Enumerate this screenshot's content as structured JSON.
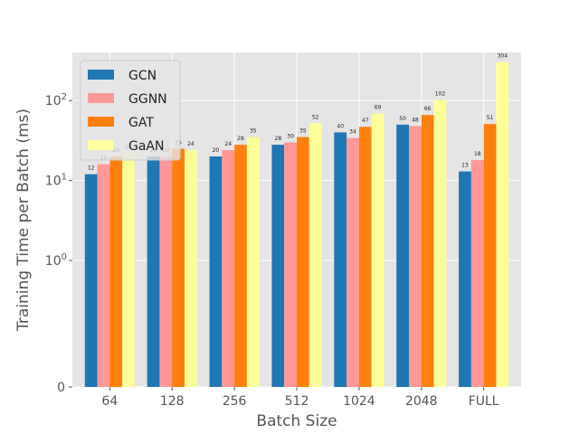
{
  "chart_data": {
    "type": "bar",
    "title": "",
    "xlabel": "Batch Size",
    "ylabel": "Training Time per Batch (ms)",
    "yscale": "symlog",
    "ylim": [
      0,
      400
    ],
    "yticks": [
      {
        "value": 0,
        "label": "0"
      },
      {
        "value": 1,
        "label": "10",
        "exp": "0"
      },
      {
        "value": 10,
        "label": "10",
        "exp": "1"
      },
      {
        "value": 100,
        "label": "10",
        "exp": "2"
      }
    ],
    "grid": true,
    "legend_position": "top-left",
    "categories": [
      "64",
      "128",
      "256",
      "512",
      "1024",
      "2048",
      "FULL"
    ],
    "series": [
      {
        "name": "GCN",
        "color": "#1f77b4",
        "values": [
          12,
          20,
          20,
          28,
          40,
          50,
          13
        ],
        "labels": [
          "12",
          "20",
          "20",
          "28",
          "40",
          "50",
          "13"
        ]
      },
      {
        "name": "GGNN",
        "color": "#ff9896",
        "values": [
          16,
          20,
          24,
          30,
          34,
          48,
          18
        ],
        "labels": [
          "16",
          "20",
          "24",
          "30",
          "34",
          "48",
          "18"
        ]
      },
      {
        "name": "GAT",
        "color": "#ff7f0e",
        "values": [
          20,
          25,
          28,
          35,
          47,
          66,
          51
        ],
        "labels": [
          "20",
          "25",
          "28",
          "35",
          "47",
          "66",
          "51"
        ]
      },
      {
        "name": "GaAN",
        "color": "#ffff99",
        "values": [
          22,
          24,
          35,
          52,
          69,
          102,
          304
        ],
        "labels": [
          "22",
          "24",
          "35",
          "52",
          "69",
          "102",
          "304"
        ]
      }
    ]
  }
}
